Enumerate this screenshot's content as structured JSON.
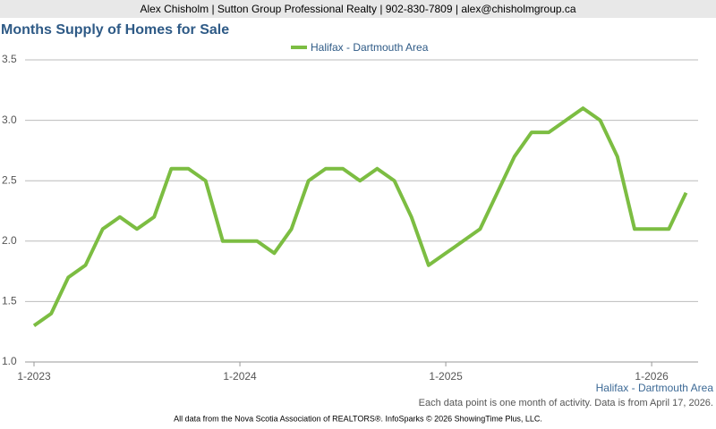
{
  "header": "Alex Chisholm | Sutton Group Professional Realty | 902-830-7809 | alex@chisholmgroup.ca",
  "chart_data": {
    "type": "line",
    "title": "Months Supply of Homes for Sale",
    "categories": [
      "1-2023",
      null,
      null,
      null,
      null,
      null,
      null,
      null,
      null,
      null,
      null,
      null,
      "1-2024",
      null,
      null,
      null,
      null,
      null,
      null,
      null,
      null,
      null,
      null,
      null,
      "1-2025",
      null,
      null,
      null,
      null,
      null,
      null,
      null,
      null,
      null,
      null,
      null,
      "1-2026",
      null,
      null
    ],
    "series": [
      {
        "name": "Halifax - Dartmouth Area",
        "color": "#7cbd42",
        "values": [
          1.3,
          1.4,
          1.7,
          1.8,
          2.1,
          2.2,
          2.1,
          2.2,
          2.6,
          2.6,
          2.5,
          2.0,
          2.0,
          2.0,
          1.9,
          2.1,
          2.5,
          2.6,
          2.6,
          2.5,
          2.6,
          2.5,
          2.2,
          1.8,
          1.9,
          2.0,
          2.1,
          2.4,
          2.7,
          2.9,
          2.9,
          3.0,
          3.1,
          3.0,
          2.7,
          2.1,
          2.1,
          2.1,
          2.4
        ]
      }
    ],
    "ylim": [
      1,
      3.5
    ],
    "yticks": [
      {
        "value": 1,
        "label": "1.0"
      },
      {
        "value": 1.5,
        "label": "1.5"
      },
      {
        "value": 2,
        "label": "2.0"
      },
      {
        "value": 2.5,
        "label": "2.5"
      },
      {
        "value": 3,
        "label": "3.0"
      },
      {
        "value": 3.5,
        "label": "3.5"
      }
    ],
    "grid": true,
    "legend": "top",
    "xlabel": "Halifax - Dartmouth Area",
    "note": "Each data point is one month of activity. Data is from April 17, 2026."
  },
  "footer": "All data from the Nova Scotia Association of REALTORS®. InfoSparks © 2026 ShowingTime Plus, LLC."
}
